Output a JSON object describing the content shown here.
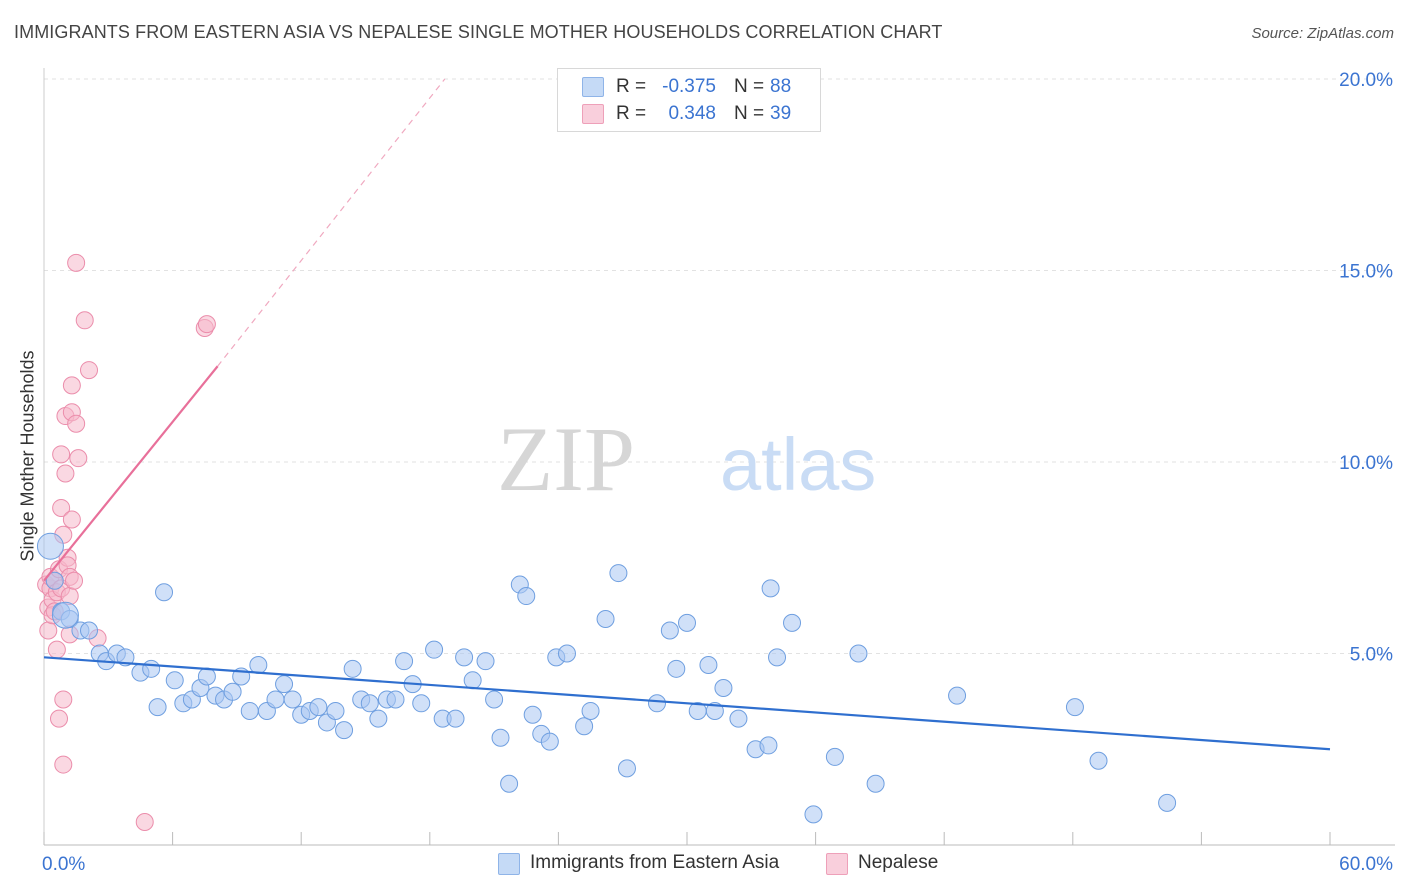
{
  "title": "IMMIGRANTS FROM EASTERN ASIA VS NEPALESE SINGLE MOTHER HOUSEHOLDS CORRELATION CHART",
  "source": "Source: ZipAtlas.com",
  "watermark": {
    "zip": "ZIP",
    "atlas": "atlas"
  },
  "legend": [
    {
      "r_label": "R =",
      "r_value": "-0.375",
      "n_label": "N =",
      "n_value": "88",
      "color": "#a9c6f2"
    },
    {
      "r_label": "R =",
      "r_value": "0.348",
      "n_label": "N =",
      "n_value": "39",
      "color": "#f6b8cb"
    }
  ],
  "bottom_legend": [
    "Immigrants from Eastern Asia",
    "Nepalese"
  ],
  "colors": {
    "blue_fill": "#a9c6f2",
    "blue_stroke": "#6f9fe0",
    "blue_line": "#2f6fcf",
    "pink_fill": "#f6b8cb",
    "pink_stroke": "#eb8dab",
    "pink_line": "#e8709a",
    "tick_text": "#3b74d1",
    "grid": "#e2e2e2"
  },
  "chart_data": {
    "type": "scatter",
    "title": "IMMIGRANTS FROM EASTERN ASIA VS NEPALESE SINGLE MOTHER HOUSEHOLDS CORRELATION CHART",
    "xlabel": "",
    "ylabel": "Single Mother Households",
    "xlim": [
      0,
      60
    ],
    "ylim": [
      0,
      20
    ],
    "x_tick_labels": [
      "0.0%",
      "60.0%"
    ],
    "y_ticks": [
      5,
      10,
      15,
      20
    ],
    "y_tick_labels": [
      "5.0%",
      "10.0%",
      "15.0%",
      "20.0%"
    ],
    "grid": true,
    "series": [
      {
        "name": "Immigrants from Eastern Asia",
        "points": [
          [
            0.3,
            7.8
          ],
          [
            0.5,
            6.9
          ],
          [
            0.8,
            6.1
          ],
          [
            1.2,
            5.9
          ],
          [
            1.7,
            5.6
          ],
          [
            2.1,
            5.6
          ],
          [
            2.6,
            5.0
          ],
          [
            2.9,
            4.8
          ],
          [
            3.4,
            5.0
          ],
          [
            3.8,
            4.9
          ],
          [
            4.5,
            4.5
          ],
          [
            5.0,
            4.6
          ],
          [
            5.3,
            3.6
          ],
          [
            5.6,
            6.6
          ],
          [
            6.1,
            4.3
          ],
          [
            6.5,
            3.7
          ],
          [
            6.9,
            3.8
          ],
          [
            7.3,
            4.1
          ],
          [
            7.6,
            4.4
          ],
          [
            8.0,
            3.9
          ],
          [
            8.4,
            3.8
          ],
          [
            8.8,
            4.0
          ],
          [
            9.2,
            4.4
          ],
          [
            9.6,
            3.5
          ],
          [
            10.0,
            4.7
          ],
          [
            10.4,
            3.5
          ],
          [
            10.8,
            3.8
          ],
          [
            11.2,
            4.2
          ],
          [
            11.6,
            3.8
          ],
          [
            12.0,
            3.4
          ],
          [
            12.4,
            3.5
          ],
          [
            12.8,
            3.6
          ],
          [
            13.2,
            3.2
          ],
          [
            13.6,
            3.5
          ],
          [
            14.0,
            3.0
          ],
          [
            14.4,
            4.6
          ],
          [
            14.8,
            3.8
          ],
          [
            15.2,
            3.7
          ],
          [
            15.6,
            3.3
          ],
          [
            16.0,
            3.8
          ],
          [
            16.4,
            3.8
          ],
          [
            16.8,
            4.8
          ],
          [
            17.2,
            4.2
          ],
          [
            17.6,
            3.7
          ],
          [
            18.2,
            5.1
          ],
          [
            18.6,
            3.3
          ],
          [
            19.2,
            3.3
          ],
          [
            19.6,
            4.9
          ],
          [
            20.0,
            4.3
          ],
          [
            20.6,
            4.8
          ],
          [
            21.0,
            3.8
          ],
          [
            21.3,
            2.8
          ],
          [
            21.7,
            1.6
          ],
          [
            22.2,
            6.8
          ],
          [
            22.5,
            6.5
          ],
          [
            22.8,
            3.4
          ],
          [
            23.2,
            2.9
          ],
          [
            23.6,
            2.7
          ],
          [
            23.9,
            4.9
          ],
          [
            24.4,
            5.0
          ],
          [
            25.2,
            3.1
          ],
          [
            25.5,
            3.5
          ],
          [
            26.2,
            5.9
          ],
          [
            26.8,
            7.1
          ],
          [
            27.2,
            2.0
          ],
          [
            28.6,
            3.7
          ],
          [
            29.2,
            5.6
          ],
          [
            29.5,
            4.6
          ],
          [
            30.0,
            5.8
          ],
          [
            30.5,
            3.5
          ],
          [
            31.0,
            4.7
          ],
          [
            31.3,
            3.5
          ],
          [
            31.7,
            4.1
          ],
          [
            32.4,
            3.3
          ],
          [
            33.2,
            2.5
          ],
          [
            33.9,
            6.7
          ],
          [
            33.8,
            2.6
          ],
          [
            34.2,
            4.9
          ],
          [
            34.9,
            5.8
          ],
          [
            35.9,
            0.8
          ],
          [
            36.9,
            2.3
          ],
          [
            38.0,
            5.0
          ],
          [
            38.8,
            1.6
          ],
          [
            42.6,
            3.9
          ],
          [
            48.1,
            3.6
          ],
          [
            49.2,
            2.2
          ],
          [
            52.4,
            1.1
          ],
          [
            1.0,
            6.0
          ]
        ],
        "trend": {
          "x0": 0,
          "y0": 4.9,
          "x1": 60,
          "y1": 2.5
        }
      },
      {
        "name": "Nepalese",
        "points": [
          [
            0.1,
            6.8
          ],
          [
            0.2,
            6.2
          ],
          [
            0.2,
            5.6
          ],
          [
            0.3,
            6.7
          ],
          [
            0.3,
            7.0
          ],
          [
            0.4,
            6.4
          ],
          [
            0.4,
            6.0
          ],
          [
            0.5,
            6.9
          ],
          [
            0.6,
            5.1
          ],
          [
            0.6,
            6.6
          ],
          [
            0.7,
            7.2
          ],
          [
            0.7,
            3.3
          ],
          [
            0.8,
            10.2
          ],
          [
            0.8,
            8.8
          ],
          [
            0.8,
            6.7
          ],
          [
            0.9,
            8.1
          ],
          [
            0.9,
            3.8
          ],
          [
            0.9,
            2.1
          ],
          [
            1.0,
            9.7
          ],
          [
            1.0,
            11.2
          ],
          [
            1.1,
            7.5
          ],
          [
            1.1,
            7.3
          ],
          [
            1.2,
            7.0
          ],
          [
            1.2,
            6.5
          ],
          [
            1.2,
            5.5
          ],
          [
            1.3,
            12.0
          ],
          [
            1.3,
            11.3
          ],
          [
            1.3,
            8.5
          ],
          [
            1.4,
            6.9
          ],
          [
            1.5,
            15.2
          ],
          [
            1.5,
            11.0
          ],
          [
            1.6,
            10.1
          ],
          [
            1.9,
            13.7
          ],
          [
            2.1,
            12.4
          ],
          [
            2.5,
            5.4
          ],
          [
            4.7,
            0.6
          ],
          [
            7.5,
            13.5
          ],
          [
            7.6,
            13.6
          ],
          [
            0.5,
            6.1
          ]
        ],
        "trend": {
          "x0": 0,
          "y0": 6.9,
          "x1": 8.1,
          "y1": 12.5
        },
        "trend_extension": {
          "x0": 8.1,
          "y0": 12.5,
          "x1": 18.7,
          "y1": 20.0
        }
      }
    ]
  }
}
